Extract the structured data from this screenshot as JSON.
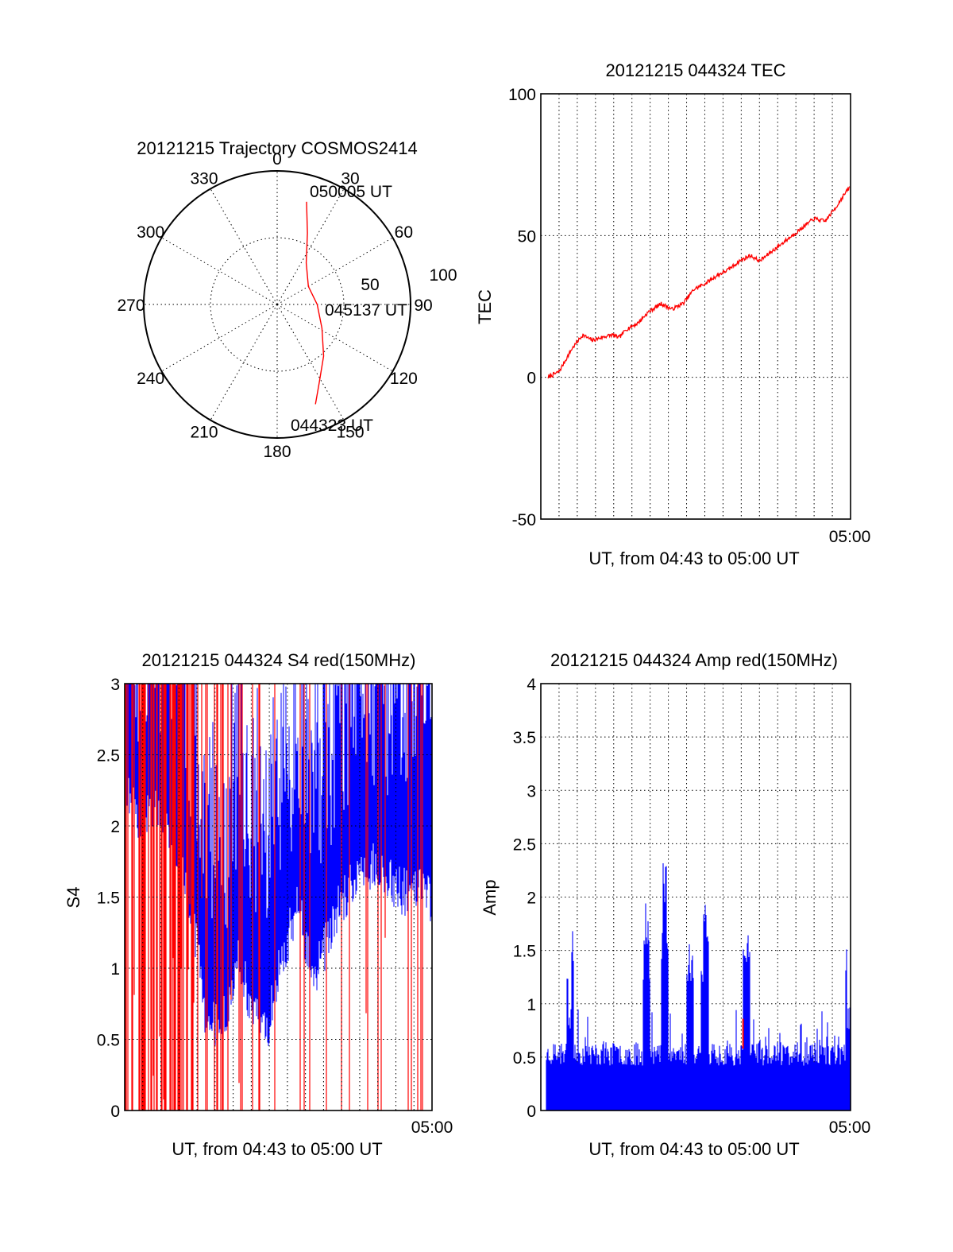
{
  "chart_data": [
    {
      "id": "trajectory",
      "type": "polar",
      "title": "20121215 Trajectory COSMOS2414",
      "azimuth_labels": [
        "0",
        "30",
        "60",
        "90",
        "120",
        "150",
        "180",
        "210",
        "240",
        "270",
        "300",
        "330"
      ],
      "radial_labels": [
        "50",
        "100"
      ],
      "series": [
        {
          "color": "#ff0000",
          "points": [
            {
              "az": 16,
              "r": 80
            },
            {
              "az": 23,
              "r": 58
            },
            {
              "az": 35,
              "r": 38
            },
            {
              "az": 60,
              "r": 27
            },
            {
              "az": 90,
              "r": 30
            },
            {
              "az": 118,
              "r": 38
            },
            {
              "az": 138,
              "r": 52
            },
            {
              "az": 152,
              "r": 67
            },
            {
              "az": 159,
              "r": 80
            }
          ]
        }
      ],
      "annotations": [
        "050005 UT",
        "045137 UT",
        "044323 UT"
      ]
    },
    {
      "id": "tec",
      "type": "line",
      "title": "20121215 044324 TEC",
      "xlabel": "UT, from 04:43 to 05:00 UT",
      "ylabel": "TEC",
      "x_tick_label": "05:00",
      "ylim": [
        -50,
        100
      ],
      "y_ticks": [
        "-50",
        "0",
        "50",
        "100"
      ],
      "x_range_minutes": [
        43,
        60
      ],
      "series": [
        {
          "color": "#ff0000",
          "points": [
            [
              43.4,
              0
            ],
            [
              44.0,
              2
            ],
            [
              44.7,
              10
            ],
            [
              45.3,
              15
            ],
            [
              45.8,
              13
            ],
            [
              46.3,
              14
            ],
            [
              46.9,
              15
            ],
            [
              47.3,
              14
            ],
            [
              47.7,
              17
            ],
            [
              48.3,
              19
            ],
            [
              48.9,
              23
            ],
            [
              49.6,
              26
            ],
            [
              50.2,
              24
            ],
            [
              50.8,
              26
            ],
            [
              51.4,
              31
            ],
            [
              52.0,
              33
            ],
            [
              52.7,
              36
            ],
            [
              53.3,
              38
            ],
            [
              53.9,
              41
            ],
            [
              54.5,
              43
            ],
            [
              55.0,
              41
            ],
            [
              55.6,
              44
            ],
            [
              56.2,
              47
            ],
            [
              56.8,
              50
            ],
            [
              57.4,
              53
            ],
            [
              58.0,
              56
            ],
            [
              58.6,
              55
            ],
            [
              59.2,
              60
            ],
            [
              59.6,
              64
            ],
            [
              59.95,
              67
            ]
          ]
        }
      ]
    },
    {
      "id": "s4",
      "type": "line",
      "title": "20121215 044324 S4 red(150MHz)",
      "xlabel": "UT, from 04:43 to 05:00 UT",
      "ylabel": "S4",
      "x_tick_label": "05:00",
      "ylim": [
        0,
        3
      ],
      "y_ticks": [
        "0",
        "0.5",
        "1",
        "1.5",
        "2",
        "2.5",
        "3"
      ],
      "x_range_minutes": [
        43,
        60
      ],
      "series": [
        {
          "color": "#0000ff",
          "points": [
            [
              43.1,
              2.4
            ],
            [
              44.0,
              2.2
            ],
            [
              45.0,
              2.3
            ],
            [
              46.0,
              2.0
            ],
            [
              46.8,
              1.5
            ],
            [
              47.4,
              0.9
            ],
            [
              48.3,
              0.7
            ],
            [
              49.3,
              1.3
            ],
            [
              50.0,
              0.85
            ],
            [
              50.9,
              0.75
            ],
            [
              51.8,
              1.3
            ],
            [
              52.6,
              1.6
            ],
            [
              53.5,
              1.1
            ],
            [
              54.5,
              1.5
            ],
            [
              55.6,
              1.8
            ],
            [
              56.6,
              1.9
            ],
            [
              57.6,
              1.8
            ],
            [
              58.6,
              1.7
            ],
            [
              59.5,
              1.8
            ],
            [
              60.0,
              1.6
            ]
          ]
        },
        {
          "color": "#ff0000",
          "points": [
            [
              43.2,
              0.0
            ],
            [
              44.4,
              0.0
            ],
            [
              45.8,
              0.3
            ],
            [
              47.5,
              0.9
            ],
            [
              49.5,
              1.6
            ],
            [
              51.5,
              2.0
            ],
            [
              53.5,
              1.7
            ],
            [
              55.5,
              2.2
            ],
            [
              57.5,
              2.6
            ],
            [
              59.8,
              2.9
            ]
          ]
        }
      ]
    },
    {
      "id": "amp",
      "type": "line",
      "title": "20121215 044324 Amp red(150MHz)",
      "xlabel": "UT, from 04:43 to 05:00 UT",
      "ylabel": "Amp",
      "x_tick_label": "05:00",
      "ylim": [
        0,
        4
      ],
      "y_ticks": [
        "0",
        "0.5",
        "1",
        "1.5",
        "2",
        "2.5",
        "3",
        "3.5",
        "4"
      ],
      "x_range_minutes": [
        43,
        60
      ],
      "series": [
        {
          "color": "#0000ff",
          "points": [
            [
              43.3,
              0.55
            ],
            [
              44.6,
              1.02
            ],
            [
              46.0,
              0.65
            ],
            [
              47.5,
              0.6
            ],
            [
              48.8,
              2.0
            ],
            [
              49.8,
              2.57
            ],
            [
              51.2,
              1.6
            ],
            [
              52.0,
              2.17
            ],
            [
              53.4,
              0.55
            ],
            [
              54.3,
              1.75
            ],
            [
              55.5,
              0.62
            ],
            [
              57.0,
              0.7
            ],
            [
              58.5,
              0.65
            ],
            [
              59.9,
              0.97
            ]
          ]
        },
        {
          "color": "#ff0000",
          "points": [
            [
              54.1,
              0.86
            ]
          ]
        }
      ]
    }
  ]
}
